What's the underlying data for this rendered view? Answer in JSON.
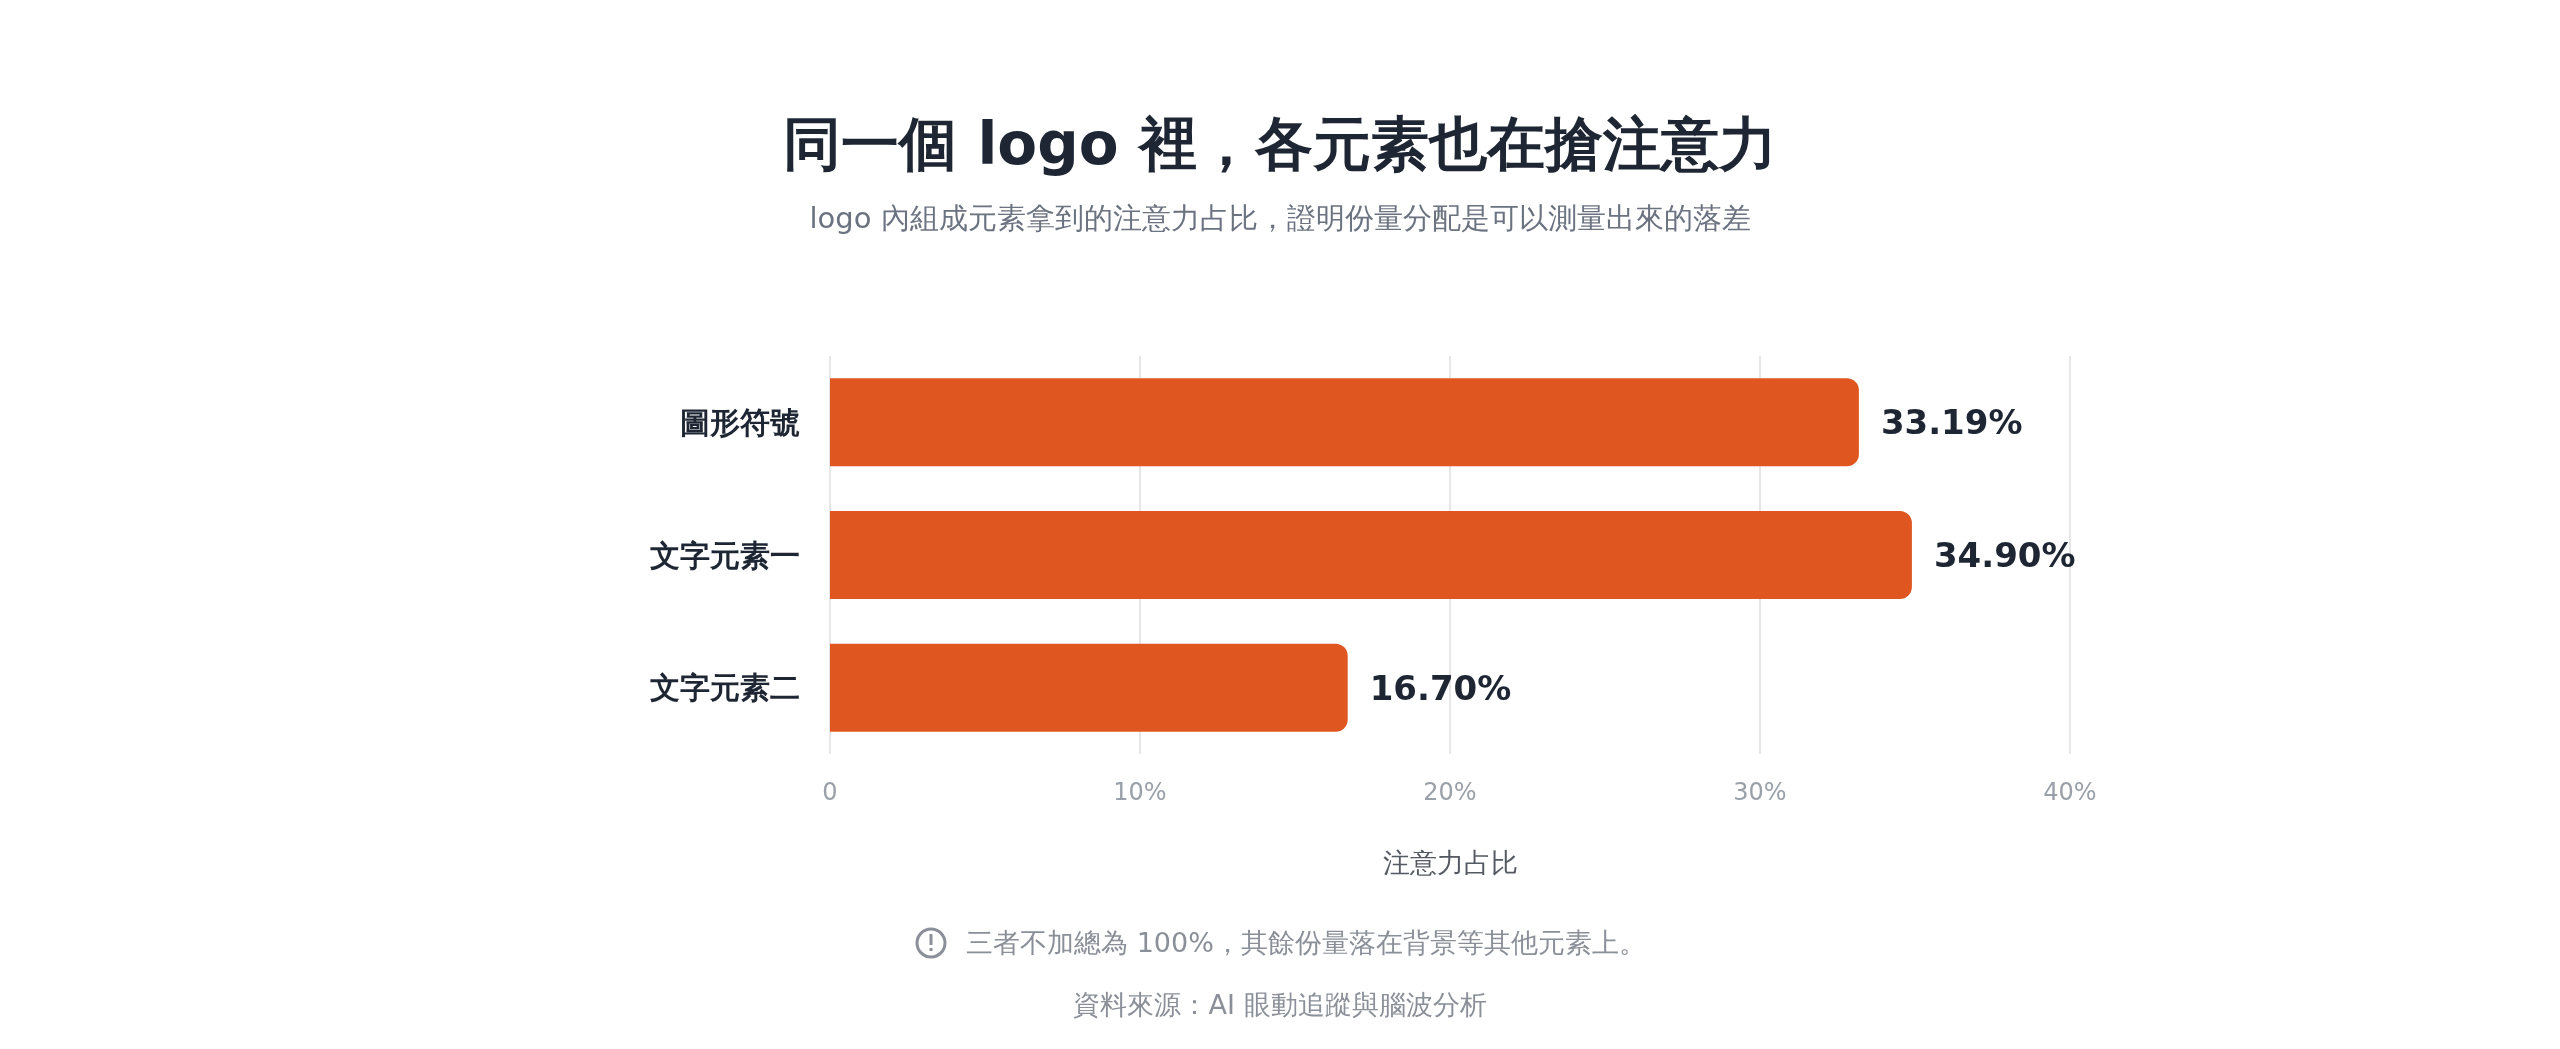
{
  "chart_data": {
    "type": "bar",
    "orientation": "horizontal",
    "title": "同一個 logo 裡，各元素也在搶注意力",
    "subtitle": "logo 內組成元素拿到的注意力占比，證明份量分配是可以測量出來的落差",
    "xlabel": "注意力占比",
    "categories": [
      "圖形符號",
      "文字元素一",
      "文字元素二"
    ],
    "values": [
      33.19,
      34.9,
      16.7
    ],
    "value_labels": [
      "33.19%",
      "34.90%",
      "16.70%"
    ],
    "color": "#e05620",
    "xlim": [
      0,
      40
    ],
    "xticks": [
      0,
      {
        "value": 10,
        "label": "10%"
      },
      {
        "value": 20,
        "label": "20%"
      },
      {
        "value": 30,
        "label": "30%"
      },
      {
        "value": 40,
        "label": "40%"
      }
    ],
    "grid": "x",
    "annotations": [
      "三者不加總為 100%，其餘份量落在背景等其他元素上。",
      "資料來源：AI 眼動追蹤與腦波分析"
    ]
  }
}
